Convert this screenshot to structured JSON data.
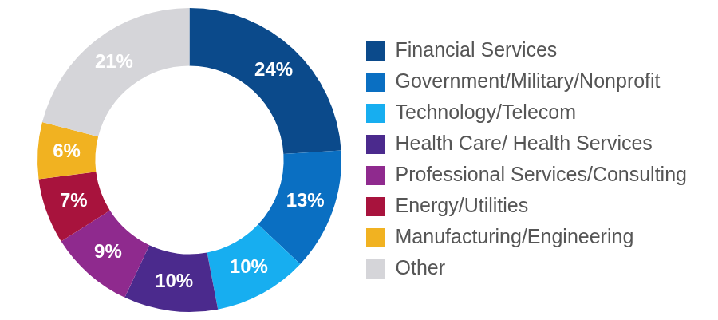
{
  "chart_data": {
    "type": "doughnut",
    "categories": [
      "Financial Services",
      "Government/Military/Nonprofit",
      "Technology/Telecom",
      "Health Care/ Health Services",
      "Professional Services/Consulting",
      "Energy/Utilities",
      "Manufacturing/Engineering",
      "Other"
    ],
    "values": [
      24,
      13,
      10,
      10,
      9,
      7,
      6,
      21
    ],
    "value_labels": [
      "24%",
      "13%",
      "10%",
      "10%",
      "9%",
      "7%",
      "6%",
      "21%"
    ],
    "colors": [
      "#0b4a8b",
      "#0a6fc2",
      "#17aef0",
      "#4b2a8d",
      "#8f2a8e",
      "#a8133d",
      "#f1b221",
      "#d5d5d9"
    ],
    "legend": "right",
    "data_labels": true
  }
}
